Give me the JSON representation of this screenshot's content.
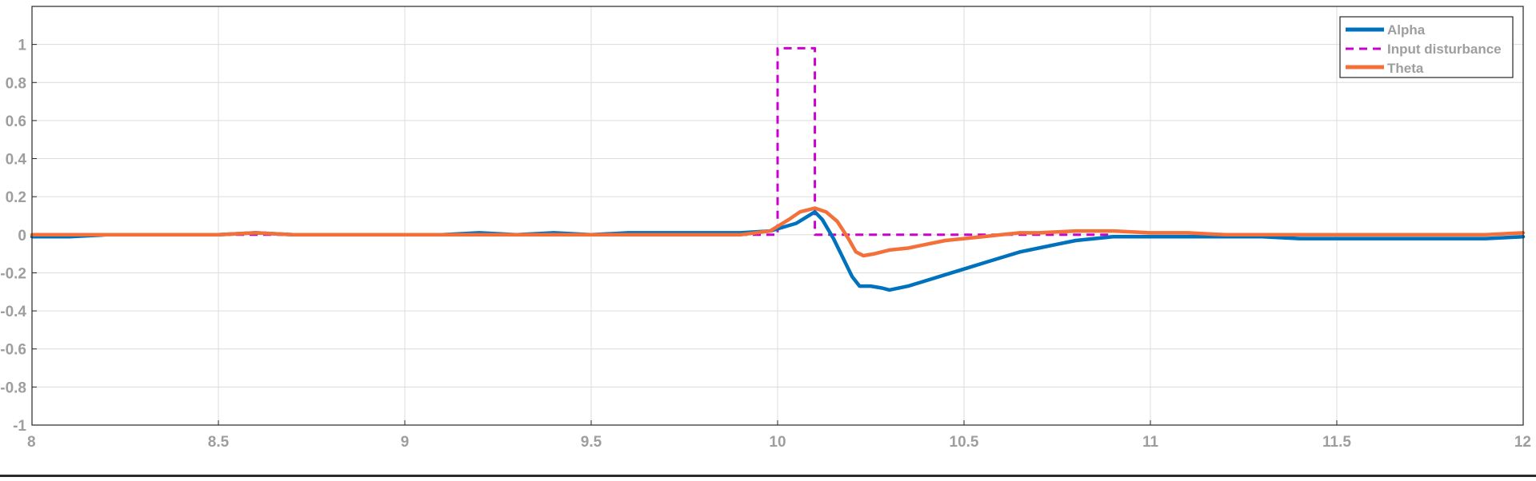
{
  "chart_data": {
    "type": "line",
    "title": "",
    "xlabel": "",
    "ylabel": "",
    "xlim": [
      8,
      12
    ],
    "ylim": [
      -1,
      1.2
    ],
    "x_ticks": [
      8,
      8.5,
      9,
      9.5,
      10,
      10.5,
      11,
      11.5,
      12
    ],
    "x_tick_labels": [
      "8",
      "8.5",
      "9",
      "9.5",
      "10",
      "10.5",
      "11",
      "11.5",
      "12"
    ],
    "y_ticks": [
      -1,
      -0.8,
      -0.6,
      -0.4,
      -0.2,
      0,
      0.2,
      0.4,
      0.6,
      0.8,
      1
    ],
    "y_tick_labels": [
      "-1",
      "-0.8",
      "-0.6",
      "-0.4",
      "-0.2",
      "0",
      "0.2",
      "0.4",
      "0.6",
      "0.8",
      "1"
    ],
    "grid": true,
    "legend_position": "top-right",
    "series": [
      {
        "name": "Alpha",
        "color": "#0072BD",
        "style": "solid",
        "x": [
          8.0,
          8.1,
          8.2,
          8.3,
          8.4,
          8.5,
          8.6,
          8.7,
          8.8,
          8.9,
          9.0,
          9.1,
          9.2,
          9.3,
          9.4,
          9.5,
          9.6,
          9.7,
          9.8,
          9.9,
          9.98,
          10.05,
          10.1,
          10.12,
          10.15,
          10.18,
          10.2,
          10.22,
          10.25,
          10.28,
          10.3,
          10.35,
          10.4,
          10.45,
          10.5,
          10.55,
          10.6,
          10.65,
          10.7,
          10.75,
          10.8,
          10.85,
          10.9,
          10.95,
          11.0,
          11.1,
          11.2,
          11.3,
          11.4,
          11.5,
          11.6,
          11.7,
          11.8,
          11.9,
          12.0
        ],
        "y": [
          -0.01,
          -0.01,
          0.0,
          0.0,
          0.0,
          0.0,
          0.01,
          0.0,
          0.0,
          0.0,
          0.0,
          0.0,
          0.01,
          0.0,
          0.01,
          0.0,
          0.01,
          0.01,
          0.01,
          0.01,
          0.02,
          0.06,
          0.12,
          0.08,
          -0.02,
          -0.14,
          -0.22,
          -0.27,
          -0.27,
          -0.28,
          -0.29,
          -0.27,
          -0.24,
          -0.21,
          -0.18,
          -0.15,
          -0.12,
          -0.09,
          -0.07,
          -0.05,
          -0.03,
          -0.02,
          -0.01,
          -0.01,
          -0.01,
          -0.01,
          -0.01,
          -0.01,
          -0.02,
          -0.02,
          -0.02,
          -0.02,
          -0.02,
          -0.02,
          -0.01
        ]
      },
      {
        "name": "Input disturbance",
        "color": "#CC00CC",
        "style": "dashed",
        "x": [
          8.0,
          10.0,
          10.0,
          10.1,
          10.1,
          10.9
        ],
        "y": [
          0,
          0,
          0.98,
          0.98,
          0,
          0
        ]
      },
      {
        "name": "Theta",
        "color": "#F4703A",
        "style": "solid",
        "x": [
          8.0,
          8.1,
          8.2,
          8.3,
          8.4,
          8.5,
          8.6,
          8.7,
          8.8,
          8.9,
          9.0,
          9.1,
          9.2,
          9.3,
          9.4,
          9.5,
          9.6,
          9.7,
          9.8,
          9.9,
          9.98,
          10.03,
          10.06,
          10.1,
          10.13,
          10.16,
          10.19,
          10.21,
          10.23,
          10.26,
          10.3,
          10.35,
          10.4,
          10.45,
          10.5,
          10.55,
          10.6,
          10.65,
          10.7,
          10.8,
          10.9,
          11.0,
          11.1,
          11.2,
          11.3,
          11.4,
          11.5,
          11.6,
          11.7,
          11.8,
          11.9,
          12.0
        ],
        "y": [
          0.0,
          0.0,
          0.0,
          0.0,
          0.0,
          0.0,
          0.01,
          0.0,
          0.0,
          0.0,
          0.0,
          0.0,
          0.0,
          0.0,
          0.0,
          0.0,
          0.0,
          0.0,
          0.0,
          0.0,
          0.02,
          0.08,
          0.12,
          0.14,
          0.12,
          0.07,
          -0.02,
          -0.09,
          -0.11,
          -0.1,
          -0.08,
          -0.07,
          -0.05,
          -0.03,
          -0.02,
          -0.01,
          0.0,
          0.01,
          0.01,
          0.02,
          0.02,
          0.01,
          0.01,
          0.0,
          0.0,
          0.0,
          0.0,
          0.0,
          0.0,
          0.0,
          0.0,
          0.01
        ]
      }
    ]
  }
}
